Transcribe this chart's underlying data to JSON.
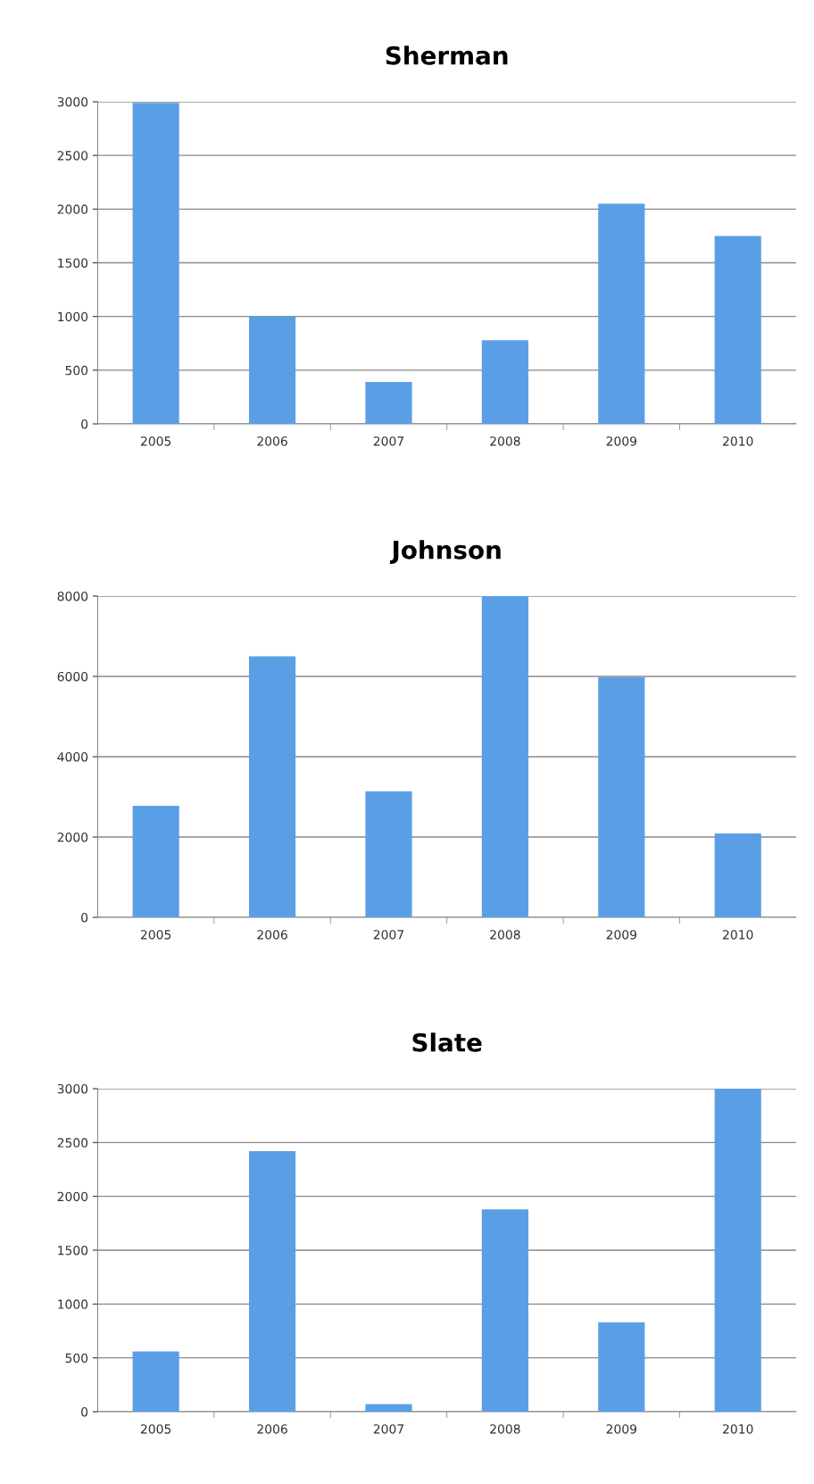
{
  "chart_data": [
    {
      "type": "bar",
      "title": "Sherman",
      "categories": [
        "2005",
        "2006",
        "2007",
        "2008",
        "2009",
        "2010"
      ],
      "values": [
        2990,
        1000,
        390,
        780,
        2050,
        1750
      ],
      "color": "#5a9fe6",
      "ylim": [
        0,
        3000
      ],
      "yticks": [
        0,
        500,
        1000,
        1500,
        2000,
        2500,
        3000
      ],
      "grid": "y"
    },
    {
      "type": "bar",
      "title": "Johnson",
      "categories": [
        "2005",
        "2006",
        "2007",
        "2008",
        "2009",
        "2010"
      ],
      "values": [
        2780,
        6500,
        3140,
        8000,
        5980,
        2090
      ],
      "color": "#5a9fe6",
      "ylim": [
        0,
        8000
      ],
      "yticks": [
        0,
        2000,
        4000,
        6000,
        8000
      ],
      "grid": "y"
    },
    {
      "type": "bar",
      "title": "Slate",
      "categories": [
        "2005",
        "2006",
        "2007",
        "2008",
        "2009",
        "2010"
      ],
      "values": [
        560,
        2420,
        70,
        1880,
        830,
        3000
      ],
      "color": "#5a9fe6",
      "ylim": [
        0,
        3000
      ],
      "yticks": [
        0,
        500,
        1000,
        1500,
        2000,
        2500,
        3000
      ],
      "grid": "y"
    }
  ]
}
